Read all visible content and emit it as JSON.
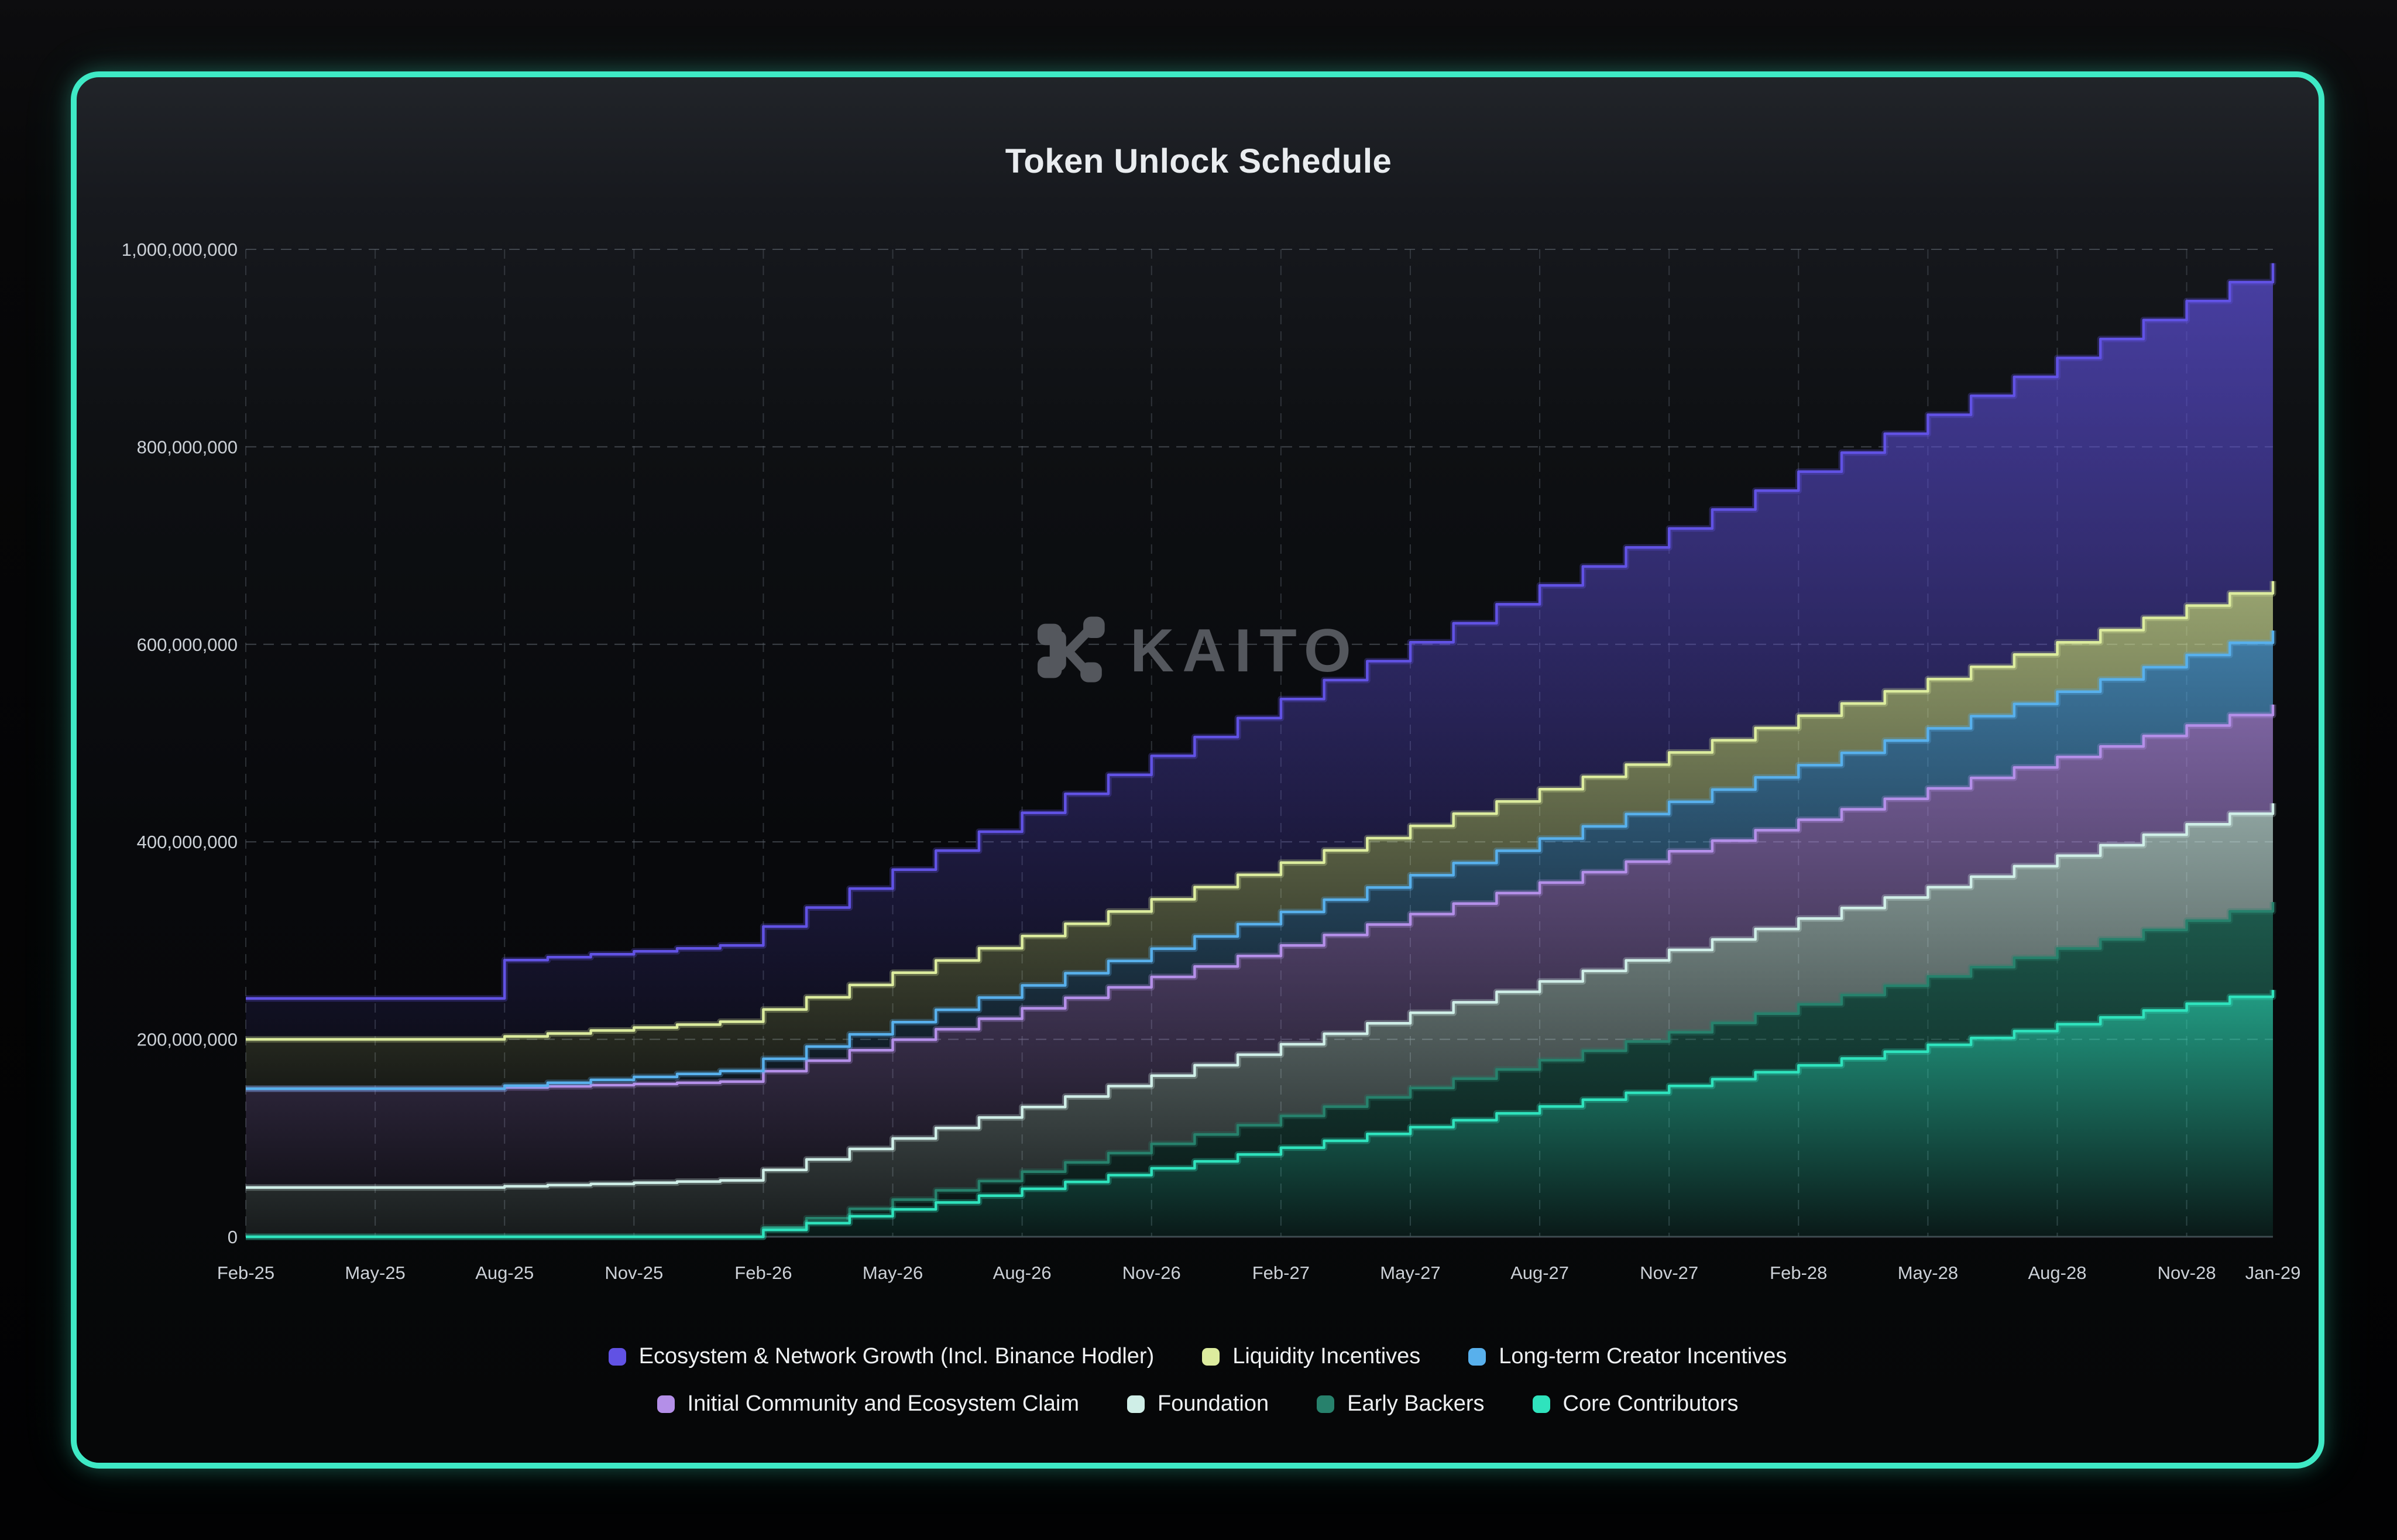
{
  "header": {
    "title": "Token Unlock Schedule"
  },
  "watermark": {
    "text": "KAITO"
  },
  "chart_data": {
    "type": "area",
    "variant": "stacked-step",
    "title": "Token Unlock Schedule",
    "values_unit": "millions of tokens",
    "grid": true,
    "legend_position": "bottom",
    "y_max_millions": 1000,
    "y_ticks": [
      {
        "label": "0",
        "value_millions": 0
      },
      {
        "label": "200,000,000",
        "value_millions": 200
      },
      {
        "label": "400,000,000",
        "value_millions": 400
      },
      {
        "label": "600,000,000",
        "value_millions": 600
      },
      {
        "label": "800,000,000",
        "value_millions": 800
      },
      {
        "label": "1,000,000,000",
        "value_millions": 1000
      }
    ],
    "x_ticks": [
      {
        "label": "Feb-25",
        "month_index": 0
      },
      {
        "label": "May-25",
        "month_index": 3
      },
      {
        "label": "Aug-25",
        "month_index": 6
      },
      {
        "label": "Nov-25",
        "month_index": 9
      },
      {
        "label": "Feb-26",
        "month_index": 12
      },
      {
        "label": "May-26",
        "month_index": 15
      },
      {
        "label": "Aug-26",
        "month_index": 18
      },
      {
        "label": "Nov-26",
        "month_index": 21
      },
      {
        "label": "Feb-27",
        "month_index": 24
      },
      {
        "label": "May-27",
        "month_index": 27
      },
      {
        "label": "Aug-27",
        "month_index": 30
      },
      {
        "label": "Nov-27",
        "month_index": 33
      },
      {
        "label": "Feb-28",
        "month_index": 36
      },
      {
        "label": "May-28",
        "month_index": 39
      },
      {
        "label": "Aug-28",
        "month_index": 42
      },
      {
        "label": "Nov-28",
        "month_index": 45
      },
      {
        "label": "Jan-29",
        "month_index": 47
      }
    ],
    "months": [
      "Feb-25",
      "Mar-25",
      "Apr-25",
      "May-25",
      "Jun-25",
      "Jul-25",
      "Aug-25",
      "Sep-25",
      "Oct-25",
      "Nov-25",
      "Dec-25",
      "Jan-26",
      "Feb-26",
      "Mar-26",
      "Apr-26",
      "May-26",
      "Jun-26",
      "Jul-26",
      "Aug-26",
      "Sep-26",
      "Oct-26",
      "Nov-26",
      "Dec-26",
      "Jan-27",
      "Feb-27",
      "Mar-27",
      "Apr-27",
      "May-27",
      "Jun-27",
      "Jul-27",
      "Aug-27",
      "Sep-27",
      "Oct-27",
      "Nov-27",
      "Dec-27",
      "Jan-28",
      "Feb-28",
      "Mar-28",
      "Apr-28",
      "May-28",
      "Jun-28",
      "Jul-28",
      "Aug-28",
      "Sep-28",
      "Oct-28",
      "Nov-28",
      "Dec-28",
      "Jan-29"
    ],
    "stack_note": "series listed bottom to top; values are cumulative unlocked tokens in millions",
    "series": [
      {
        "name": "Core Contributors",
        "color": "#2fe3bd",
        "values_millions": [
          0,
          0,
          0,
          0,
          0,
          0,
          0,
          0,
          0,
          0,
          0,
          0,
          6.94,
          13.89,
          20.83,
          27.78,
          34.72,
          41.67,
          48.61,
          55.56,
          62.5,
          69.44,
          76.39,
          83.33,
          90.28,
          97.22,
          104.17,
          111.11,
          118.06,
          125,
          131.94,
          138.89,
          145.83,
          152.78,
          159.72,
          166.67,
          173.61,
          180.56,
          187.5,
          194.44,
          201.39,
          208.33,
          215.28,
          222.22,
          229.17,
          236.11,
          243.06,
          250
        ]
      },
      {
        "name": "Early Backers",
        "color": "#27816c",
        "values_millions": [
          0,
          0,
          0,
          0,
          0,
          0,
          0,
          0,
          0,
          0,
          0,
          0,
          2.47,
          4.94,
          7.42,
          9.89,
          12.36,
          14.83,
          17.31,
          19.78,
          22.25,
          24.72,
          27.19,
          29.67,
          32.14,
          34.61,
          37.08,
          39.56,
          42.03,
          44.5,
          46.97,
          49.44,
          51.92,
          54.39,
          56.86,
          59.33,
          61.81,
          64.28,
          66.75,
          69.22,
          71.69,
          74.17,
          76.64,
          79.11,
          81.58,
          84.06,
          86.53,
          89
        ]
      },
      {
        "name": "Foundation",
        "color": "#cfeee7",
        "values_millions": [
          50,
          50,
          50,
          50,
          50,
          50,
          51.19,
          52.38,
          53.57,
          54.76,
          55.95,
          57.14,
          58.33,
          59.52,
          60.71,
          61.9,
          63.1,
          64.29,
          65.48,
          66.67,
          67.86,
          69.05,
          70.24,
          71.43,
          72.62,
          73.81,
          75,
          76.19,
          77.38,
          78.57,
          79.76,
          80.95,
          82.14,
          83.33,
          84.52,
          85.71,
          86.9,
          88.1,
          89.29,
          90.48,
          91.67,
          92.86,
          94.05,
          95.24,
          96.43,
          97.62,
          98.81,
          100
        ]
      },
      {
        "name": "Initial Community and Ecosystem Claim",
        "color": "#b48fe8",
        "values_millions": [
          100,
          100,
          100,
          100,
          100,
          100,
          100,
          100,
          100,
          100,
          100,
          100,
          100,
          100,
          100,
          100,
          100,
          100,
          100,
          100,
          100,
          100,
          100,
          100,
          100,
          100,
          100,
          100,
          100,
          100,
          100,
          100,
          100,
          100,
          100,
          100,
          100,
          100,
          100,
          100,
          100,
          100,
          100,
          100,
          100,
          100,
          100,
          100
        ]
      },
      {
        "name": "Long-term Creator Incentives",
        "color": "#58b0ec",
        "values_millions": [
          0,
          0,
          0,
          0,
          0,
          0,
          1.79,
          3.57,
          5.36,
          7.14,
          8.93,
          10.71,
          12.5,
          14.29,
          16.07,
          17.86,
          19.64,
          21.43,
          23.21,
          25,
          26.79,
          28.57,
          30.36,
          32.14,
          33.93,
          35.71,
          37.5,
          39.29,
          41.07,
          42.86,
          44.64,
          46.43,
          48.21,
          50,
          51.79,
          53.57,
          55.36,
          57.14,
          58.93,
          60.71,
          62.5,
          64.29,
          66.07,
          67.86,
          69.64,
          71.43,
          73.21,
          75
        ]
      },
      {
        "name": "Liquidity Incentives",
        "color": "#dcec9e",
        "values_millions": [
          50,
          50,
          50,
          50,
          50,
          50,
          50,
          50,
          50,
          50,
          50,
          50,
          50,
          50,
          50,
          50,
          50,
          50,
          50,
          50,
          50,
          50,
          50,
          50,
          50,
          50,
          50,
          50,
          50,
          50,
          50,
          50,
          50,
          50,
          50,
          50,
          50,
          50,
          50,
          50,
          50,
          50,
          50,
          50,
          50,
          50,
          50,
          50
        ]
      },
      {
        "name": "Ecosystem & Network Growth (Incl. Binance Hodler)",
        "color": "#6152e4",
        "values_millions": [
          41.39,
          41.39,
          41.39,
          41.39,
          41.39,
          41.39,
          77.21,
          77.21,
          77.21,
          77.21,
          77.21,
          77.21,
          84.01,
          90.81,
          97.61,
          104.41,
          111.21,
          118.01,
          124.81,
          131.61,
          138.41,
          145.21,
          152.01,
          158.81,
          165.61,
          172.41,
          179.21,
          186.01,
          192.81,
          199.61,
          206.41,
          213.21,
          220.01,
          226.81,
          233.61,
          240.41,
          247.21,
          254.01,
          260.81,
          267.61,
          274.41,
          281.21,
          288.01,
          294.81,
          301.61,
          308.41,
          315.21,
          322
        ]
      }
    ],
    "legend_rows": [
      [
        "Ecosystem & Network Growth (Incl. Binance Hodler)",
        "Liquidity Incentives",
        "Long-term Creator Incentives"
      ],
      [
        "Initial Community and Ecosystem Claim",
        "Foundation",
        "Early Backers",
        "Core Contributors"
      ]
    ]
  }
}
